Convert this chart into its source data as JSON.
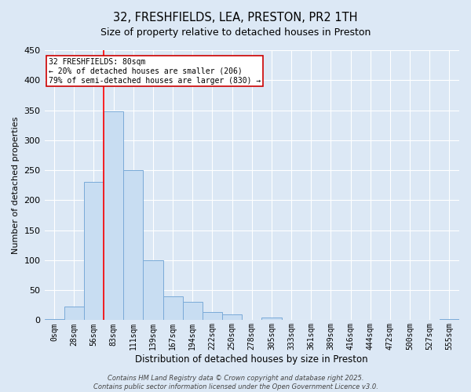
{
  "title_line1": "32, FRESHFIELDS, LEA, PRESTON, PR2 1TH",
  "title_line2": "Size of property relative to detached houses in Preston",
  "xlabel": "Distribution of detached houses by size in Preston",
  "ylabel": "Number of detached properties",
  "categories": [
    "0sqm",
    "28sqm",
    "56sqm",
    "83sqm",
    "111sqm",
    "139sqm",
    "167sqm",
    "194sqm",
    "222sqm",
    "250sqm",
    "278sqm",
    "305sqm",
    "333sqm",
    "361sqm",
    "389sqm",
    "416sqm",
    "444sqm",
    "472sqm",
    "500sqm",
    "527sqm",
    "555sqm"
  ],
  "values": [
    2,
    23,
    230,
    348,
    250,
    100,
    40,
    30,
    13,
    10,
    0,
    5,
    0,
    0,
    0,
    0,
    0,
    0,
    0,
    0,
    2
  ],
  "bar_color": "#c8ddf2",
  "bar_edge_color": "#7aaad8",
  "background_color": "#dce8f5",
  "ylim": [
    0,
    450
  ],
  "yticks": [
    0,
    50,
    100,
    150,
    200,
    250,
    300,
    350,
    400,
    450
  ],
  "annotation_text_line1": "32 FRESHFIELDS: 80sqm",
  "annotation_text_line2": "← 20% of detached houses are smaller (206)",
  "annotation_text_line3": "79% of semi-detached houses are larger (830) →",
  "annotation_box_facecolor": "#ffffff",
  "annotation_box_edgecolor": "#cc0000",
  "red_line_bin_index": 2,
  "footer_line1": "Contains HM Land Registry data © Crown copyright and database right 2025.",
  "footer_line2": "Contains public sector information licensed under the Open Government Licence v3.0."
}
